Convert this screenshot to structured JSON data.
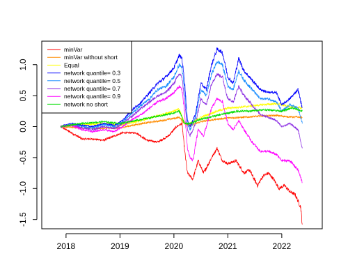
{
  "chart_data": {
    "type": "line",
    "title": "",
    "xlabel": "",
    "ylabel": "",
    "xlim": [
      2017.55,
      2022.75
    ],
    "ylim": [
      -1.65,
      1.38
    ],
    "x_ticks": [
      {
        "value": 2018,
        "label": "2018"
      },
      {
        "value": 2019,
        "label": "2019"
      },
      {
        "value": 2020,
        "label": "2020"
      },
      {
        "value": 2021,
        "label": "2021"
      },
      {
        "value": 2022,
        "label": "2022"
      }
    ],
    "y_ticks": [
      {
        "value": -1.5,
        "label": "-1.5"
      },
      {
        "value": -1.0,
        "label": "-1.0"
      },
      {
        "value": -0.5,
        "label": "-0.5"
      },
      {
        "value": 0.0,
        "label": "0.0"
      },
      {
        "value": 0.5,
        "label": "0.5"
      },
      {
        "value": 1.0,
        "label": "1.0"
      }
    ],
    "legend_position": "top-left",
    "series": [
      {
        "name": "minVar",
        "color": "#ff0000",
        "x": [
          2017.9,
          2018.1,
          2018.3,
          2018.5,
          2018.7,
          2018.9,
          2019.05,
          2019.3,
          2019.5,
          2019.7,
          2019.9,
          2020.05,
          2020.15,
          2020.2,
          2020.25,
          2020.3,
          2020.35,
          2020.45,
          2020.55,
          2020.7,
          2020.8,
          2020.9,
          2021.0,
          2021.15,
          2021.3,
          2021.4,
          2021.55,
          2021.65,
          2021.75,
          2021.85,
          2021.95,
          2022.05,
          2022.15,
          2022.25,
          2022.35,
          2022.38
        ],
        "y": [
          0.0,
          -0.1,
          -0.2,
          -0.2,
          -0.22,
          -0.15,
          -0.1,
          -0.1,
          -0.22,
          -0.25,
          -0.15,
          0.0,
          0.05,
          -0.4,
          -0.75,
          -0.8,
          -0.85,
          -0.55,
          -0.75,
          -0.5,
          -0.35,
          -0.55,
          -0.6,
          -0.55,
          -0.75,
          -0.7,
          -0.95,
          -0.8,
          -0.75,
          -0.85,
          -1.0,
          -0.95,
          -1.05,
          -1.1,
          -1.3,
          -1.58
        ]
      },
      {
        "name": "minVar without short",
        "color": "#ff8c00",
        "x": [
          2017.9,
          2018.3,
          2018.7,
          2019.0,
          2019.4,
          2019.8,
          2020.1,
          2020.2,
          2020.3,
          2020.5,
          2020.8,
          2021.0,
          2021.3,
          2021.6,
          2021.9,
          2022.1,
          2022.38
        ],
        "y": [
          0.0,
          -0.02,
          -0.03,
          -0.02,
          0.05,
          0.1,
          0.15,
          0.05,
          0.02,
          0.08,
          0.12,
          0.14,
          0.15,
          0.17,
          0.18,
          0.16,
          0.15
        ]
      },
      {
        "name": "Equal",
        "color": "#ffff00",
        "x": [
          2017.9,
          2018.3,
          2018.7,
          2019.0,
          2019.4,
          2019.8,
          2020.1,
          2020.2,
          2020.3,
          2020.5,
          2020.8,
          2021.0,
          2021.3,
          2021.6,
          2021.9,
          2022.1,
          2022.38
        ],
        "y": [
          0.0,
          0.03,
          0.05,
          0.02,
          0.1,
          0.2,
          0.28,
          0.05,
          0.05,
          0.15,
          0.25,
          0.3,
          0.32,
          0.35,
          0.37,
          0.33,
          0.3
        ]
      },
      {
        "name": "network quantile= 0.3",
        "color": "#0000ff",
        "x": [
          2017.9,
          2018.1,
          2018.3,
          2018.5,
          2018.7,
          2018.9,
          2019.05,
          2019.2,
          2019.4,
          2019.55,
          2019.7,
          2019.85,
          2020.0,
          2020.1,
          2020.15,
          2020.2,
          2020.25,
          2020.3,
          2020.4,
          2020.5,
          2020.6,
          2020.7,
          2020.8,
          2020.9,
          2021.0,
          2021.1,
          2021.2,
          2021.3,
          2021.45,
          2021.6,
          2021.75,
          2021.9,
          2022.0,
          2022.15,
          2022.3,
          2022.38
        ],
        "y": [
          0.0,
          0.05,
          0.02,
          0.0,
          0.05,
          0.02,
          0.1,
          0.25,
          0.4,
          0.55,
          0.7,
          0.8,
          0.95,
          1.15,
          1.1,
          0.7,
          0.1,
          0.0,
          0.2,
          0.7,
          0.6,
          1.0,
          1.25,
          1.2,
          0.8,
          0.7,
          1.1,
          0.9,
          0.75,
          0.6,
          0.55,
          0.55,
          0.35,
          0.45,
          0.6,
          0.3
        ]
      },
      {
        "name": "network quantile= 0.5",
        "color": "#1e90ff",
        "x": [
          2017.9,
          2018.1,
          2018.3,
          2018.5,
          2018.7,
          2018.9,
          2019.05,
          2019.2,
          2019.4,
          2019.55,
          2019.7,
          2019.85,
          2020.0,
          2020.1,
          2020.15,
          2020.2,
          2020.25,
          2020.3,
          2020.4,
          2020.5,
          2020.6,
          2020.7,
          2020.8,
          2020.9,
          2021.0,
          2021.1,
          2021.2,
          2021.3,
          2021.45,
          2021.6,
          2021.75,
          2021.9,
          2022.0,
          2022.15,
          2022.3,
          2022.38
        ],
        "y": [
          0.0,
          0.04,
          0.0,
          -0.02,
          0.03,
          0.0,
          0.08,
          0.2,
          0.35,
          0.45,
          0.6,
          0.65,
          0.8,
          1.0,
          0.95,
          0.55,
          0.05,
          -0.05,
          0.15,
          0.6,
          0.5,
          0.85,
          1.05,
          1.0,
          0.65,
          0.6,
          0.9,
          0.75,
          0.6,
          0.45,
          0.45,
          0.4,
          0.25,
          0.35,
          0.3,
          0.05
        ]
      },
      {
        "name": "network quantile= 0.7",
        "color": "#8a2be2",
        "x": [
          2017.9,
          2018.1,
          2018.3,
          2018.5,
          2018.7,
          2018.9,
          2019.05,
          2019.2,
          2019.4,
          2019.55,
          2019.7,
          2019.85,
          2020.0,
          2020.1,
          2020.15,
          2020.2,
          2020.25,
          2020.3,
          2020.4,
          2020.5,
          2020.6,
          2020.7,
          2020.8,
          2020.9,
          2021.0,
          2021.1,
          2021.2,
          2021.3,
          2021.45,
          2021.6,
          2021.75,
          2021.9,
          2022.0,
          2022.15,
          2022.3,
          2022.38
        ],
        "y": [
          0.0,
          0.03,
          -0.02,
          -0.05,
          0.0,
          -0.03,
          0.05,
          0.15,
          0.3,
          0.4,
          0.5,
          0.55,
          0.7,
          0.85,
          0.8,
          0.4,
          -0.05,
          -0.15,
          0.05,
          0.45,
          0.35,
          0.7,
          0.85,
          0.8,
          0.45,
          0.4,
          0.65,
          0.5,
          0.35,
          0.2,
          0.15,
          0.1,
          0.0,
          0.05,
          -0.05,
          -0.35
        ]
      },
      {
        "name": "network quantile= 0.9",
        "color": "#ff00ff",
        "x": [
          2017.9,
          2018.1,
          2018.3,
          2018.5,
          2018.7,
          2018.9,
          2019.05,
          2019.2,
          2019.4,
          2019.55,
          2019.7,
          2019.85,
          2020.0,
          2020.1,
          2020.15,
          2020.2,
          2020.25,
          2020.3,
          2020.35,
          2020.45,
          2020.55,
          2020.7,
          2020.8,
          2020.9,
          2021.0,
          2021.1,
          2021.2,
          2021.3,
          2021.45,
          2021.6,
          2021.75,
          2021.9,
          2022.0,
          2022.15,
          2022.3,
          2022.38
        ],
        "y": [
          0.0,
          0.02,
          -0.05,
          -0.08,
          -0.05,
          -0.08,
          0.0,
          0.1,
          0.2,
          0.3,
          0.4,
          0.45,
          0.55,
          0.65,
          0.6,
          0.2,
          -0.35,
          -0.5,
          -0.55,
          -0.05,
          -0.15,
          0.3,
          0.45,
          0.4,
          0.05,
          -0.05,
          0.1,
          -0.05,
          -0.25,
          -0.4,
          -0.4,
          -0.45,
          -0.55,
          -0.55,
          -0.7,
          -0.9
        ]
      },
      {
        "name": "network no short",
        "color": "#00dd00",
        "x": [
          2017.9,
          2018.3,
          2018.7,
          2019.0,
          2019.3,
          2019.6,
          2019.9,
          2020.1,
          2020.2,
          2020.3,
          2020.5,
          2020.8,
          2021.0,
          2021.2,
          2021.4,
          2021.6,
          2021.8,
          2022.0,
          2022.2,
          2022.38
        ],
        "y": [
          0.0,
          0.05,
          0.08,
          0.05,
          0.1,
          0.15,
          0.2,
          0.25,
          0.05,
          0.05,
          0.12,
          0.18,
          0.22,
          0.25,
          0.25,
          0.27,
          0.27,
          0.25,
          0.3,
          0.25
        ]
      }
    ]
  }
}
